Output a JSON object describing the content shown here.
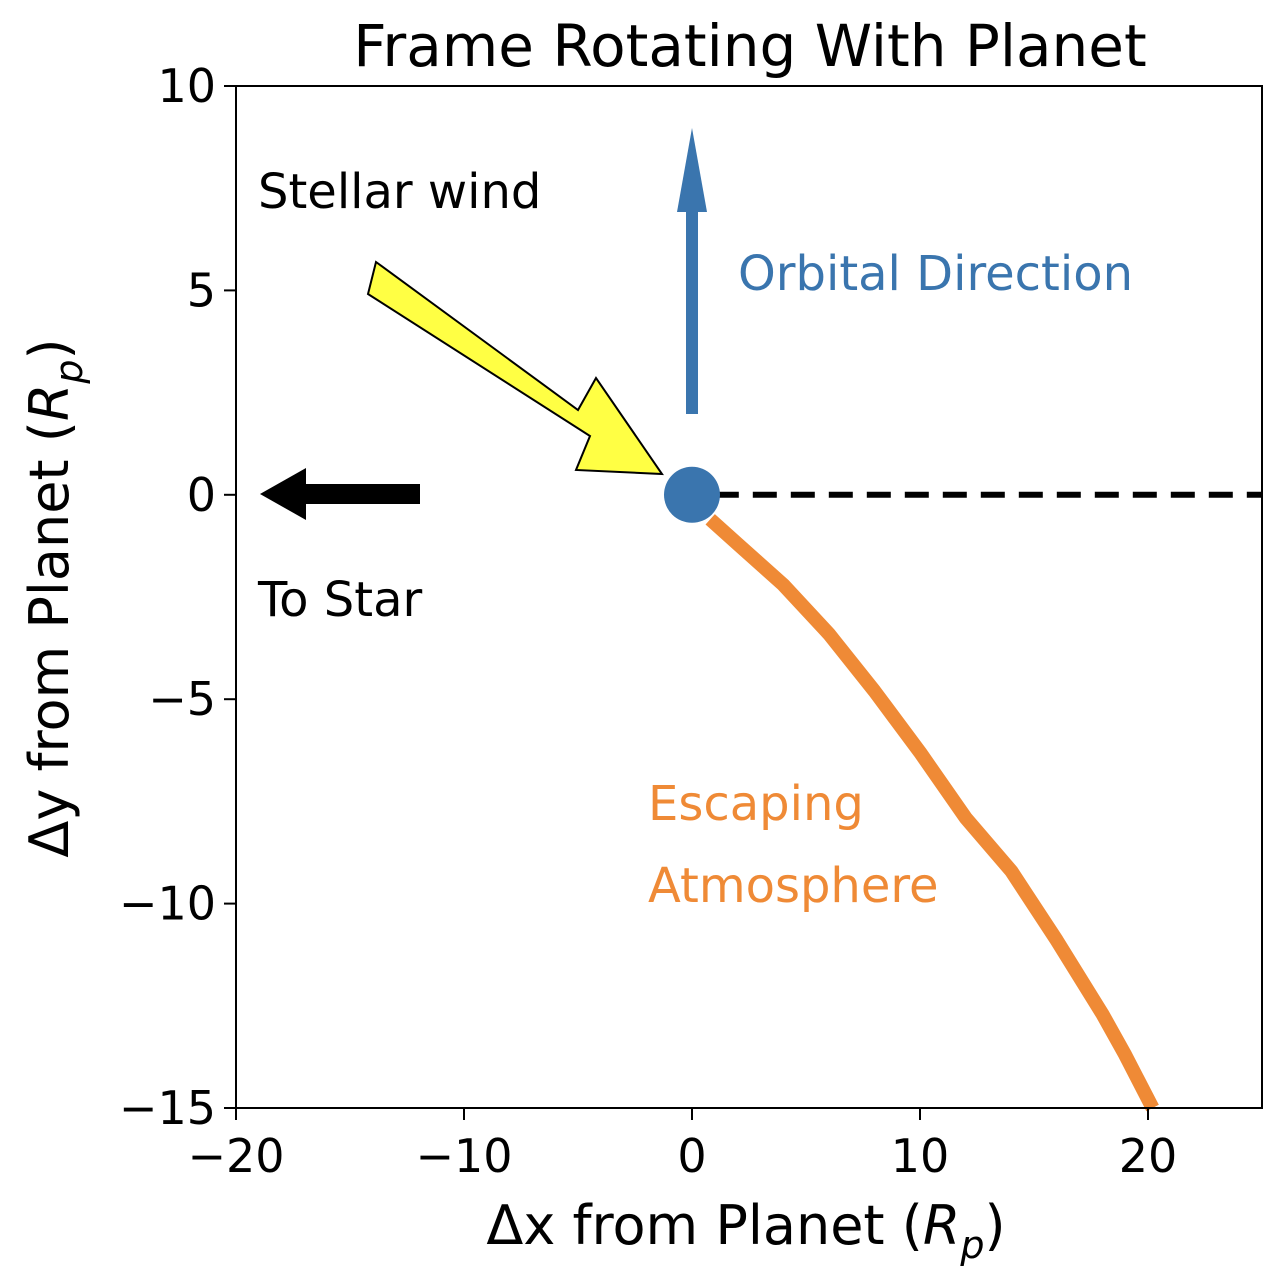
{
  "chart_data": {
    "type": "line",
    "title": "Frame Rotating With Planet",
    "xlabel": {
      "prefix": "Δx from Planet (",
      "symbol": "R",
      "sub": "p",
      "suffix": ")"
    },
    "ylabel": {
      "prefix": "Δy from Planet (",
      "symbol": "R",
      "sub": "p",
      "suffix": ")"
    },
    "xlim": [
      -20,
      25
    ],
    "ylim": [
      -15,
      10
    ],
    "xticks": [
      -20,
      -10,
      0,
      10,
      20
    ],
    "yticks": [
      -15,
      -10,
      -5,
      0,
      5,
      10
    ],
    "xtick_labels": [
      "−20",
      "−10",
      "0",
      "10",
      "20"
    ],
    "ytick_labels": [
      "−15",
      "−10",
      "−5",
      "0",
      "5",
      "10"
    ],
    "grid": false,
    "planet": {
      "x": 0,
      "y": 0,
      "color": "#3a75ae"
    },
    "dashed_line": {
      "x": [
        1,
        25
      ],
      "y": [
        0,
        0
      ],
      "color": "#000000"
    },
    "escaping_atmosphere": {
      "color": "#ef8a36",
      "x": [
        0.8,
        2,
        4,
        6,
        8,
        10,
        12,
        14,
        16,
        18,
        19,
        20.2
      ],
      "y": [
        -0.6,
        -1.2,
        -2.2,
        -3.4,
        -4.8,
        -6.3,
        -7.9,
        -9.2,
        -10.9,
        -12.7,
        -13.7,
        -15.0
      ]
    },
    "annotations": {
      "stellar_wind": {
        "text": "Stellar wind",
        "color": "#000000"
      },
      "orbital_direction": {
        "text": "Orbital Direction",
        "color": "#3a75ae"
      },
      "to_star": {
        "text": "To Star",
        "color": "#000000"
      },
      "escaping_line1": {
        "text": "Escaping",
        "color": "#ef8a36"
      },
      "escaping_line2": {
        "text": "Atmosphere",
        "color": "#ef8a36"
      }
    },
    "arrows": {
      "to_star": {
        "color": "#000000"
      },
      "orbital": {
        "color": "#3a75ae"
      },
      "stellar_wind": {
        "fill": "#ffff44",
        "stroke": "#000000"
      }
    }
  }
}
